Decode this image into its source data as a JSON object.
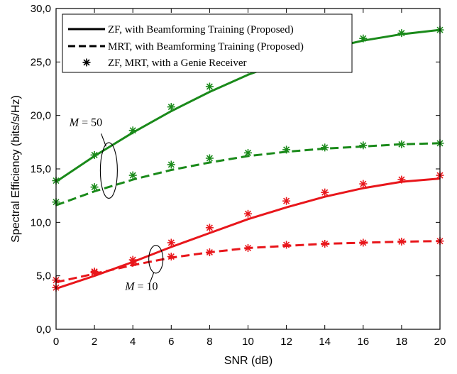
{
  "chart_data": {
    "type": "line",
    "xlabel": "SNR (dB)",
    "ylabel": "Spectral Efficiency (bits/s/Hz)",
    "xlim": [
      0,
      20
    ],
    "ylim": [
      0,
      30
    ],
    "xticks": [
      0,
      2,
      4,
      6,
      8,
      10,
      12,
      14,
      16,
      18,
      20
    ],
    "xtick_labels": [
      "0",
      "2",
      "4",
      "6",
      "8",
      "10",
      "12",
      "14",
      "16",
      "18",
      "20"
    ],
    "yticks": [
      0,
      5,
      10,
      15,
      20,
      25,
      30
    ],
    "ytick_labels": [
      "0,0",
      "5,0",
      "10,0",
      "15,0",
      "20,0",
      "25,0",
      "30,0"
    ],
    "grid": false,
    "legend_position": "top-left",
    "legend": [
      {
        "label": "ZF, with Beamforming Training (Proposed)",
        "style": "solid"
      },
      {
        "label": "MRT, with Beamforming Training (Proposed)",
        "style": "dashed"
      },
      {
        "label": "ZF, MRT, with a Genie Receiver",
        "style": "marker"
      }
    ],
    "x": [
      0,
      2,
      4,
      6,
      8,
      10,
      12,
      14,
      16,
      18,
      20
    ],
    "series": [
      {
        "group": "M = 50",
        "scheme": "ZF",
        "style": "solid",
        "color": "#1a8a1a",
        "line": [
          13.8,
          16.2,
          18.4,
          20.4,
          22.2,
          23.8,
          25.1,
          26.2,
          27.0,
          27.6,
          28.0
        ],
        "markers": [
          13.9,
          16.3,
          18.6,
          20.8,
          22.7,
          24.3,
          25.4,
          26.4,
          27.2,
          27.7,
          28.0
        ]
      },
      {
        "group": "M = 50",
        "scheme": "MRT",
        "style": "dashed",
        "color": "#1a8a1a",
        "line": [
          11.6,
          12.9,
          14.0,
          14.9,
          15.6,
          16.2,
          16.6,
          16.9,
          17.1,
          17.3,
          17.4
        ],
        "markers": [
          11.9,
          13.3,
          14.4,
          15.4,
          16.0,
          16.5,
          16.8,
          17.0,
          17.2,
          17.3,
          17.4
        ]
      },
      {
        "group": "M = 10",
        "scheme": "ZF",
        "style": "solid",
        "color": "#e8161b",
        "line": [
          3.8,
          5.0,
          6.3,
          7.7,
          9.0,
          10.3,
          11.4,
          12.4,
          13.2,
          13.8,
          14.1
        ],
        "markers": [
          3.9,
          5.3,
          6.5,
          8.1,
          9.5,
          10.8,
          12.0,
          12.8,
          13.6,
          14.0,
          14.4
        ]
      },
      {
        "group": "M = 10",
        "scheme": "MRT",
        "style": "dashed",
        "color": "#e8161b",
        "line": [
          4.4,
          5.2,
          6.0,
          6.7,
          7.2,
          7.6,
          7.8,
          8.0,
          8.1,
          8.2,
          8.25
        ],
        "markers": [
          4.6,
          5.4,
          6.2,
          6.8,
          7.2,
          7.6,
          7.9,
          8.0,
          8.1,
          8.2,
          8.25
        ]
      }
    ],
    "annotations": [
      {
        "label_italic": "M",
        "label_rest": " = 50",
        "x": 1.55,
        "y": 19.0
      },
      {
        "label_italic": "M",
        "label_rest": " = 10",
        "x": 4.45,
        "y": 3.7
      }
    ]
  },
  "colors": {
    "green": "#1a8a1a",
    "red": "#e8161b",
    "axis": "#000000"
  }
}
